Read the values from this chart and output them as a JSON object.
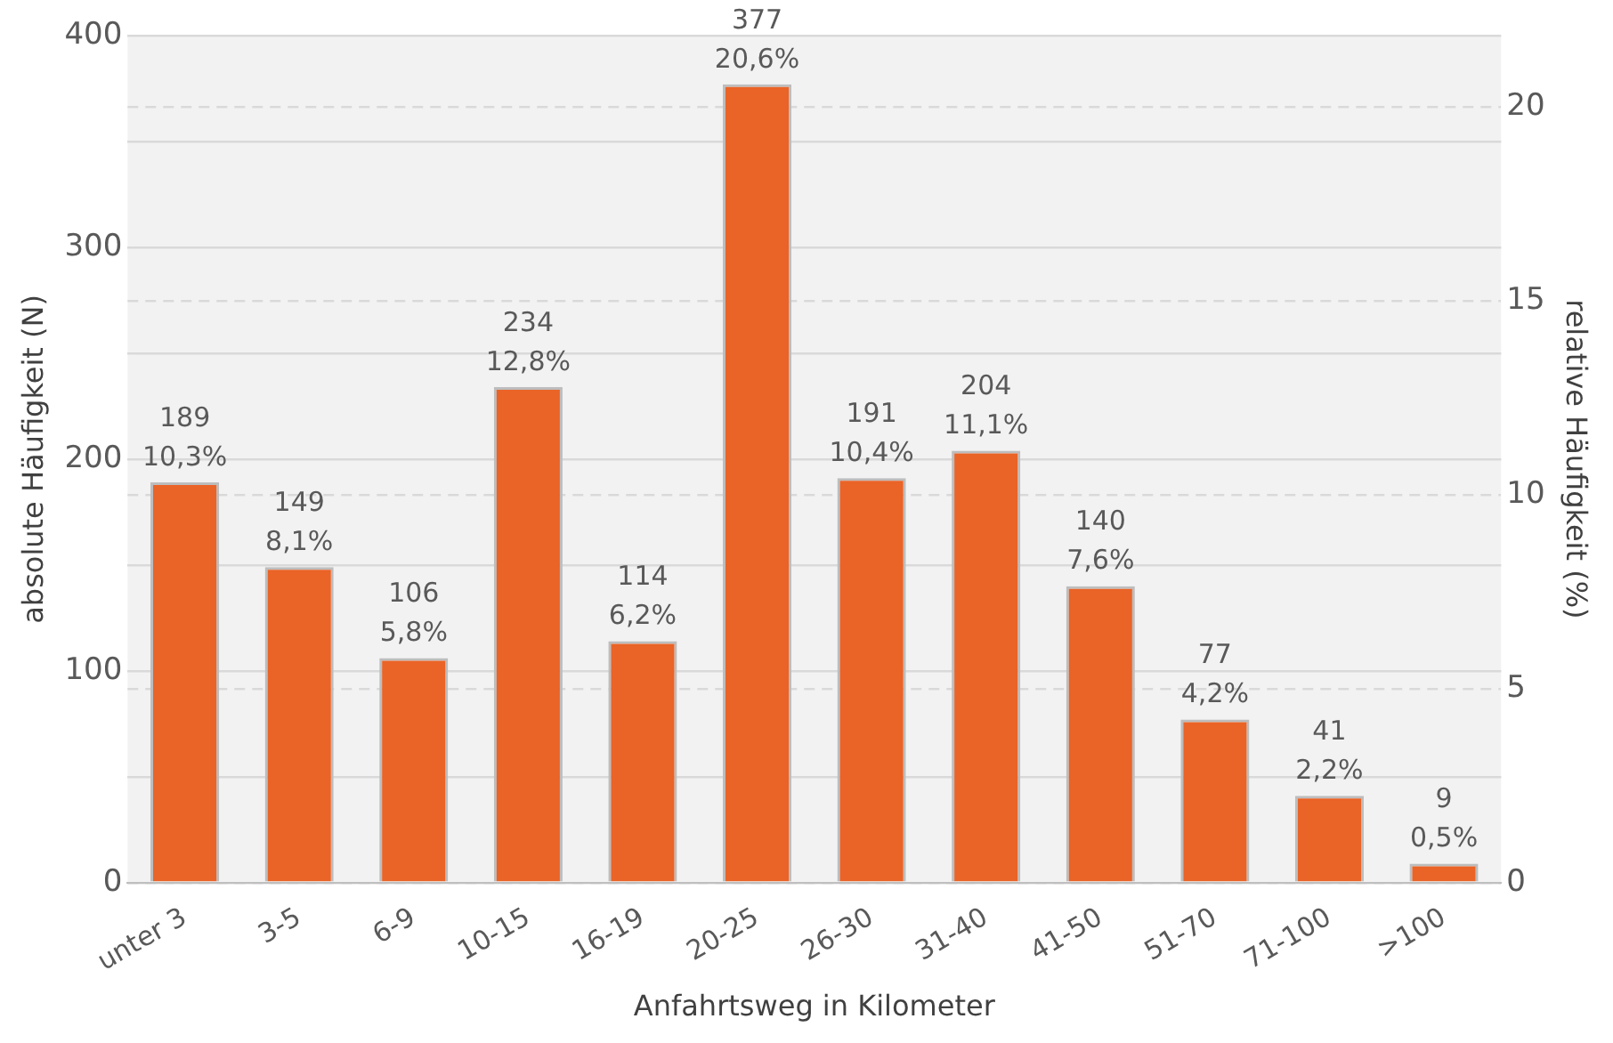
{
  "chart_data": {
    "type": "bar",
    "xlabel": "Anfahrtsweg in Kilometer",
    "ylabel": "absolute Häufigkeit (N)",
    "y2label": "relative Häufigkeit (%)",
    "categories": [
      "unter 3",
      "3-5",
      "6-9",
      "10-15",
      "16-19",
      "20-25",
      "26-30",
      "31-40",
      "41-50",
      "51-70",
      "71-100",
      ">100"
    ],
    "values": [
      189,
      149,
      106,
      234,
      114,
      377,
      191,
      204,
      140,
      77,
      41,
      9
    ],
    "value_labels": [
      "189\n10,3%",
      "149\n8,1%",
      "106\n5,8%",
      "234\n12,8%",
      "114\n6,2%",
      "377\n20,6%",
      "191\n10,4%",
      "204\n11,1%",
      "140\n7,6%",
      "77\n4,2%",
      "41\n2,2%",
      "9\n0,5%"
    ],
    "color": "#ea6327",
    "ylim": [
      0,
      400
    ],
    "yticks": [
      0,
      {
        "value": 50,
        "label": null
      },
      100,
      {
        "value": 150,
        "label": null
      },
      200,
      {
        "value": 250,
        "label": null
      },
      300,
      {
        "value": 350,
        "label": null
      },
      400
    ],
    "y2lim": [
      0,
      21.85
    ],
    "y2ticks": [
      0,
      5,
      10,
      15,
      20
    ],
    "grid": "y",
    "legend": false
  }
}
